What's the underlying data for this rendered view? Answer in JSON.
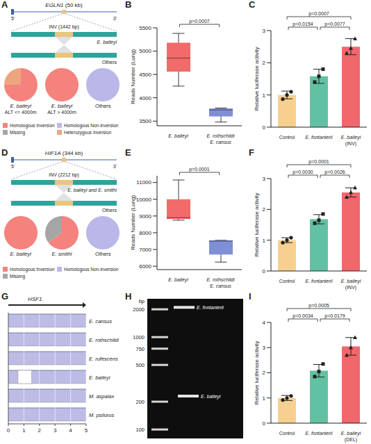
{
  "chart_data": [
    {
      "panel": "A",
      "type": "pie",
      "diagram": {
        "gene": "EGLN1",
        "size": "(50 kb)",
        "ends": [
          "5'",
          "3'"
        ],
        "inversion": "INV (1442 bp)",
        "tracks": [
          "E. baileyi",
          "Others"
        ]
      },
      "categories": [
        "Homologous Inversion",
        "Homologous Non-inversion",
        "Missing",
        "Heterozygous Inversion"
      ],
      "colors": [
        "#F4837D",
        "#B9B8E8",
        "#A6A6A6",
        "#EDA57F"
      ],
      "legend": "bottom",
      "pies": [
        {
          "title": "E. baileyi",
          "subtitle": "ALT <= 4000m",
          "values": [
            75,
            0,
            0,
            25
          ]
        },
        {
          "title": "E. baileyi",
          "subtitle": "ALT > 4000m",
          "values": [
            100,
            0,
            0,
            0
          ]
        },
        {
          "title": "Others",
          "values": [
            0,
            100,
            0,
            0
          ]
        }
      ]
    },
    {
      "panel": "B",
      "type": "box",
      "categories": [
        [
          "E. baileyi"
        ],
        [
          "E. rothschildi",
          "E. cansus"
        ]
      ],
      "min": [
        4250,
        3480
      ],
      "q1": [
        4560,
        3600
      ],
      "median": [
        4850,
        3740
      ],
      "q3": [
        5180,
        3770
      ],
      "max": [
        5380,
        3780
      ],
      "colors": [
        "#F26B6B",
        "#7F8FD6"
      ],
      "ylabel": "Reads Number (Lung)",
      "ylim": [
        3400,
        5500
      ],
      "yticks": [
        3500,
        4000,
        4500,
        5000,
        5500
      ],
      "annotations": [
        {
          "text": "p=0.0007",
          "between": [
            0,
            1
          ]
        }
      ]
    },
    {
      "panel": "C",
      "type": "bar",
      "categories": [
        "Control",
        "E. fontanierii",
        "E. baileyi (INV)"
      ],
      "values": [
        1.0,
        1.58,
        2.5
      ],
      "error": [
        0.12,
        0.22,
        0.25
      ],
      "points": [
        {
          "values": [
            0.87,
            1.0,
            1.1
          ],
          "marker": "circle"
        },
        {
          "values": [
            1.4,
            1.58,
            1.8
          ],
          "marker": "square"
        },
        {
          "values": [
            2.3,
            2.45,
            2.75
          ],
          "marker": "triangle"
        }
      ],
      "colors": [
        "#F7D08F",
        "#62C1A2",
        "#F0676C"
      ],
      "ylabel": "Relative luciferase activity",
      "ylim": [
        0,
        3
      ],
      "yticks": [
        0,
        1,
        2,
        3
      ],
      "annotations": [
        {
          "text": "p=0.0154",
          "between": [
            0,
            1
          ]
        },
        {
          "text": "p=0.0007",
          "between": [
            0,
            2
          ]
        },
        {
          "text": "p=0.0077",
          "between": [
            1,
            2
          ]
        }
      ]
    },
    {
      "panel": "D",
      "type": "pie",
      "diagram": {
        "gene": "HIF1A",
        "size": "(344 kb)",
        "ends": [
          "5'",
          "3'"
        ],
        "inversion": "INV (2212 bp)",
        "tracks": [
          "E. baileyi and E. smithi",
          "Others"
        ]
      },
      "categories": [
        "Homologous Inversion",
        "Homologous Non-inversion",
        "Missing"
      ],
      "colors": [
        "#F4837D",
        "#B9B8E8",
        "#A6A6A6"
      ],
      "legend": "bottom",
      "pies": [
        {
          "title": "E. baileyi",
          "values": [
            100,
            0,
            0
          ]
        },
        {
          "title": "E. smithi",
          "values": [
            65,
            0,
            35
          ]
        },
        {
          "title": "Others",
          "values": [
            0,
            100,
            0
          ]
        }
      ]
    },
    {
      "panel": "E",
      "type": "box",
      "categories": [
        [
          "E. baileyi"
        ],
        [
          "E. rothschildi",
          "E. cansus"
        ]
      ],
      "min": [
        8750,
        6250
      ],
      "q1": [
        8820,
        6700
      ],
      "median": [
        8900,
        7500
      ],
      "q3": [
        10000,
        7550
      ],
      "max": [
        11150,
        7550
      ],
      "colors": [
        "#F26B6B",
        "#7F8FD6"
      ],
      "ylabel": "Reads Number (Lung)",
      "ylim": [
        5800,
        11400
      ],
      "yticks": [
        6000,
        7000,
        8000,
        9000,
        10000,
        11000
      ],
      "annotations": [
        {
          "text": "p=0.0001",
          "between": [
            0,
            1
          ]
        }
      ]
    },
    {
      "panel": "F",
      "type": "bar",
      "categories": [
        "Control",
        "E. fontanierii",
        "E. baileyi (INV)"
      ],
      "values": [
        1.0,
        1.68,
        2.55
      ],
      "error": [
        0.08,
        0.15,
        0.15
      ],
      "points": [
        {
          "values": [
            0.92,
            1.0,
            1.08
          ],
          "marker": "circle"
        },
        {
          "values": [
            1.55,
            1.65,
            1.85
          ],
          "marker": "square"
        },
        {
          "values": [
            2.4,
            2.55,
            2.7
          ],
          "marker": "triangle"
        }
      ],
      "colors": [
        "#F7D08F",
        "#62C1A2",
        "#F0676C"
      ],
      "ylabel": "Relative luciferase activity",
      "ylim": [
        0,
        3
      ],
      "yticks": [
        0,
        1,
        2,
        3
      ],
      "annotations": [
        {
          "text": "p=0.0030",
          "between": [
            0,
            1
          ]
        },
        {
          "text": "p=0.0001",
          "between": [
            0,
            2
          ]
        },
        {
          "text": "p=0.0026",
          "between": [
            1,
            2
          ]
        }
      ]
    },
    {
      "panel": "G",
      "type": "alignment",
      "title": "HSF1",
      "tracks": [
        {
          "name": "E. cansus"
        },
        {
          "name": "E. rothschildi"
        },
        {
          "name": "E. rufescens"
        },
        {
          "name": "E. baileyi",
          "gap": [
            0.62,
            1.5
          ]
        },
        {
          "name": "M. aspalax"
        },
        {
          "name": "M. psilurus"
        }
      ],
      "xlim": [
        0,
        5
      ],
      "xticks": [
        0,
        1,
        2,
        3,
        4,
        5
      ],
      "grid": true,
      "color": "#BDBCE6"
    },
    {
      "panel": "H",
      "type": "gel",
      "ylabel": "bp",
      "ylim": [
        80,
        2600
      ],
      "yticks": [
        2000,
        1000,
        750,
        500,
        200,
        100
      ],
      "log": "y",
      "bands": [
        {
          "name": "E. fontanierii",
          "value": 2100
        },
        {
          "name": "E. baileyi",
          "value": 230
        }
      ]
    },
    {
      "panel": "I",
      "type": "bar",
      "categories": [
        "Control",
        "E. fontanierii",
        "E. baileyi (DEL)"
      ],
      "values": [
        1.0,
        2.08,
        3.05
      ],
      "error": [
        0.1,
        0.25,
        0.35
      ],
      "points": [
        {
          "values": [
            0.92,
            1.0,
            1.08
          ],
          "marker": "circle"
        },
        {
          "values": [
            1.85,
            2.05,
            2.35
          ],
          "marker": "square"
        },
        {
          "values": [
            2.7,
            3.0,
            3.4
          ],
          "marker": "triangle"
        }
      ],
      "colors": [
        "#F7D08F",
        "#62C1A2",
        "#F0676C"
      ],
      "ylabel": "Relative luciferase activity",
      "ylim": [
        0,
        4
      ],
      "yticks": [
        0,
        1,
        2,
        3,
        4
      ],
      "annotations": [
        {
          "text": "p=0.0034",
          "between": [
            0,
            1
          ]
        },
        {
          "text": "p=0.0005",
          "between": [
            0,
            2
          ]
        },
        {
          "text": "p=0.0179",
          "between": [
            1,
            2
          ]
        }
      ]
    }
  ]
}
